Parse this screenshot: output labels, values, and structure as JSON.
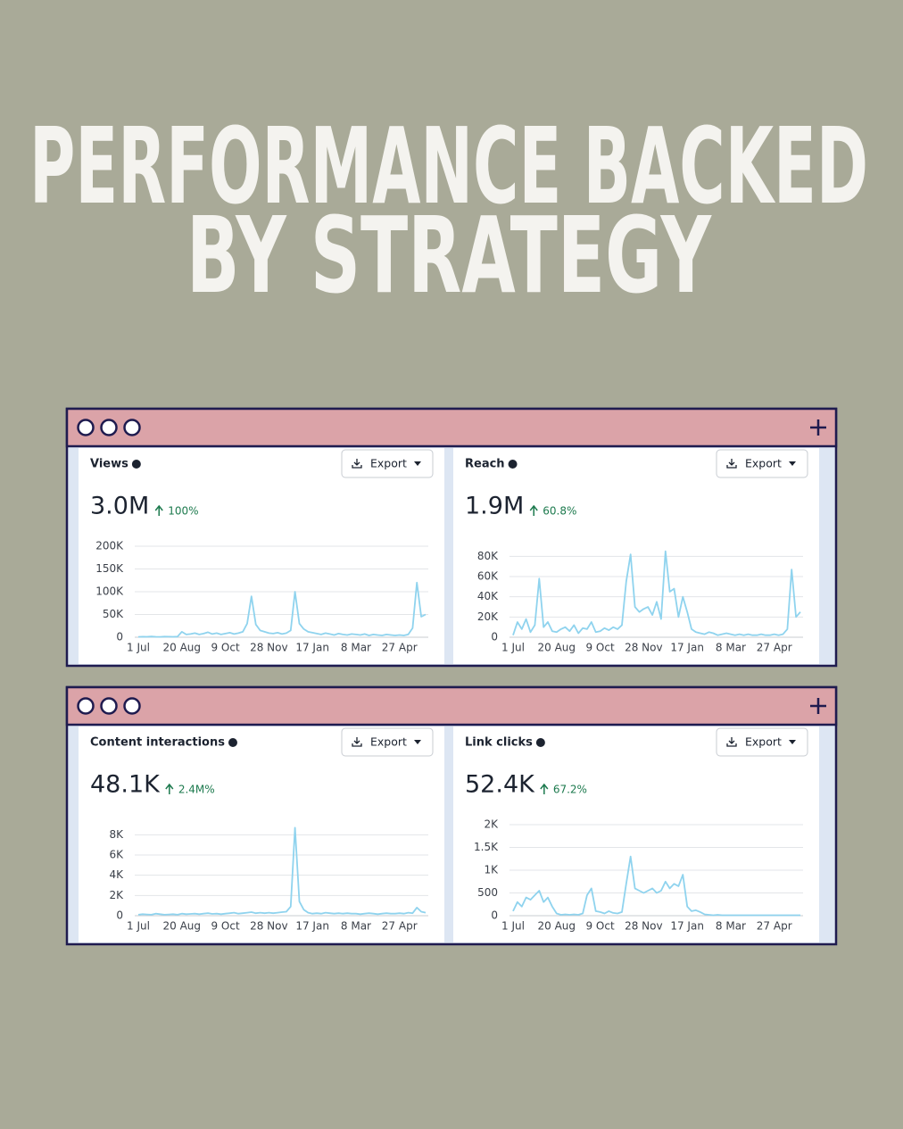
{
  "title_lines": [
    "PERFORMANCE BACKED",
    "BY STRATEGY"
  ],
  "chart_data": [
    {
      "type": "line",
      "title": "Views",
      "total": "3.0M",
      "change": "100%",
      "button": "Export",
      "color": "#8fd3ee",
      "grid": true,
      "categories": [
        "1 Jul",
        null,
        null,
        null,
        null,
        null,
        null,
        null,
        null,
        null,
        "20 Aug",
        null,
        null,
        null,
        null,
        null,
        null,
        null,
        null,
        null,
        "9 Oct",
        null,
        null,
        null,
        null,
        null,
        null,
        null,
        null,
        null,
        "28 Nov",
        null,
        null,
        null,
        null,
        null,
        null,
        null,
        null,
        null,
        "17 Jan",
        null,
        null,
        null,
        null,
        null,
        null,
        null,
        null,
        null,
        "8 Mar",
        null,
        null,
        null,
        null,
        null,
        null,
        null,
        null,
        null,
        "27 Apr",
        null,
        null,
        null,
        null,
        null,
        null
      ],
      "values": [
        800,
        1200,
        900,
        1500,
        1000,
        800,
        1400,
        1100,
        900,
        1300,
        12000,
        6000,
        7000,
        9000,
        6000,
        8000,
        11000,
        7000,
        9000,
        6000,
        8000,
        10000,
        7000,
        9000,
        12000,
        30000,
        90000,
        28000,
        15000,
        12000,
        9000,
        8000,
        10000,
        7000,
        9000,
        15000,
        100000,
        30000,
        18000,
        12000,
        10000,
        8000,
        6000,
        9000,
        7000,
        5000,
        8000,
        6000,
        5000,
        7000,
        6000,
        5000,
        7000,
        4000,
        6000,
        5000,
        4000,
        6000,
        5000,
        4000,
        5000,
        4000,
        6000,
        20000,
        120000,
        45000,
        50000
      ],
      "ylim": [
        0,
        200000
      ],
      "yticks": [
        0,
        {
          "value": 50000,
          "label": "50K"
        },
        {
          "value": 100000,
          "label": "100K"
        },
        {
          "value": 150000,
          "label": "150K"
        },
        {
          "value": 200000,
          "label": "200K"
        }
      ]
    },
    {
      "type": "line",
      "title": "Reach",
      "total": "1.9M",
      "change": "60.8%",
      "button": "Export",
      "color": "#8fd3ee",
      "grid": true,
      "categories": [
        "1 Jul",
        null,
        null,
        null,
        null,
        null,
        null,
        null,
        null,
        null,
        "20 Aug",
        null,
        null,
        null,
        null,
        null,
        null,
        null,
        null,
        null,
        "9 Oct",
        null,
        null,
        null,
        null,
        null,
        null,
        null,
        null,
        null,
        "28 Nov",
        null,
        null,
        null,
        null,
        null,
        null,
        null,
        null,
        null,
        "17 Jan",
        null,
        null,
        null,
        null,
        null,
        null,
        null,
        null,
        null,
        "8 Mar",
        null,
        null,
        null,
        null,
        null,
        null,
        null,
        null,
        null,
        "27 Apr",
        null,
        null,
        null,
        null,
        null,
        null
      ],
      "values": [
        2000,
        15000,
        8000,
        18000,
        5000,
        12000,
        58000,
        10000,
        15000,
        6000,
        5000,
        8000,
        10000,
        6000,
        12000,
        4000,
        9000,
        8000,
        15000,
        5000,
        6000,
        9000,
        7000,
        10000,
        8000,
        12000,
        55000,
        82000,
        30000,
        25000,
        28000,
        30000,
        22000,
        35000,
        18000,
        85000,
        45000,
        48000,
        20000,
        40000,
        25000,
        8000,
        5000,
        4000,
        3000,
        5000,
        4000,
        2000,
        3000,
        4000,
        3000,
        2000,
        3000,
        2000,
        3000,
        2000,
        2000,
        3000,
        2000,
        2000,
        3000,
        2000,
        3000,
        8000,
        67000,
        20000,
        25000
      ],
      "ylim": [
        0,
        90000
      ],
      "yticks": [
        0,
        {
          "value": 20000,
          "label": "20K"
        },
        {
          "value": 40000,
          "label": "40K"
        },
        {
          "value": 60000,
          "label": "60K"
        },
        {
          "value": 80000,
          "label": "80K"
        }
      ]
    },
    {
      "type": "line",
      "title": "Content interactions",
      "total": "48.1K",
      "change": "2.4M%",
      "button": "Export",
      "color": "#8fd3ee",
      "grid": true,
      "categories": [
        "1 Jul",
        null,
        null,
        null,
        null,
        null,
        null,
        null,
        null,
        null,
        "20 Aug",
        null,
        null,
        null,
        null,
        null,
        null,
        null,
        null,
        null,
        "9 Oct",
        null,
        null,
        null,
        null,
        null,
        null,
        null,
        null,
        null,
        "28 Nov",
        null,
        null,
        null,
        null,
        null,
        null,
        null,
        null,
        null,
        "17 Jan",
        null,
        null,
        null,
        null,
        null,
        null,
        null,
        null,
        null,
        "8 Mar",
        null,
        null,
        null,
        null,
        null,
        null,
        null,
        null,
        null,
        "27 Apr",
        null,
        null,
        null,
        null,
        null,
        null
      ],
      "values": [
        100,
        150,
        120,
        100,
        200,
        150,
        100,
        120,
        150,
        100,
        200,
        150,
        180,
        200,
        150,
        200,
        250,
        180,
        200,
        150,
        200,
        250,
        300,
        200,
        250,
        300,
        350,
        250,
        300,
        250,
        300,
        250,
        300,
        350,
        400,
        900,
        8700,
        1400,
        600,
        300,
        200,
        250,
        200,
        300,
        250,
        200,
        250,
        200,
        250,
        200,
        200,
        150,
        200,
        250,
        200,
        150,
        200,
        250,
        200,
        200,
        250,
        200,
        300,
        250,
        800,
        400,
        300
      ],
      "ylim": [
        0,
        9000
      ],
      "yticks": [
        0,
        {
          "value": 2000,
          "label": "2K"
        },
        {
          "value": 4000,
          "label": "4K"
        },
        {
          "value": 6000,
          "label": "6K"
        },
        {
          "value": 8000,
          "label": "8K"
        }
      ]
    },
    {
      "type": "line",
      "title": "Link clicks",
      "total": "52.4K",
      "change": "67.2%",
      "button": "Export",
      "color": "#8fd3ee",
      "grid": true,
      "categories": [
        "1 Jul",
        null,
        null,
        null,
        null,
        null,
        null,
        null,
        null,
        null,
        "20 Aug",
        null,
        null,
        null,
        null,
        null,
        null,
        null,
        null,
        null,
        "9 Oct",
        null,
        null,
        null,
        null,
        null,
        null,
        null,
        null,
        null,
        "28 Nov",
        null,
        null,
        null,
        null,
        null,
        null,
        null,
        null,
        null,
        "17 Jan",
        null,
        null,
        null,
        null,
        null,
        null,
        null,
        null,
        null,
        "8 Mar",
        null,
        null,
        null,
        null,
        null,
        null,
        null,
        null,
        null,
        "27 Apr",
        null,
        null,
        null,
        null,
        null,
        null
      ],
      "values": [
        100,
        300,
        200,
        400,
        350,
        450,
        550,
        300,
        400,
        200,
        50,
        20,
        30,
        20,
        30,
        20,
        50,
        450,
        600,
        100,
        80,
        50,
        100,
        60,
        50,
        80,
        700,
        1300,
        600,
        550,
        500,
        550,
        600,
        500,
        550,
        750,
        600,
        700,
        650,
        900,
        200,
        100,
        120,
        80,
        30,
        20,
        10,
        20,
        10,
        10,
        10,
        10,
        10,
        10,
        10,
        10,
        10,
        10,
        10,
        10,
        10,
        10,
        10,
        10,
        10,
        10,
        10
      ],
      "ylim": [
        0,
        2000
      ],
      "yticks": [
        0,
        500,
        {
          "value": 1000,
          "label": "1K"
        },
        {
          "value": 1500,
          "label": "1.5K"
        },
        {
          "value": 2000,
          "label": "2K"
        }
      ]
    }
  ]
}
